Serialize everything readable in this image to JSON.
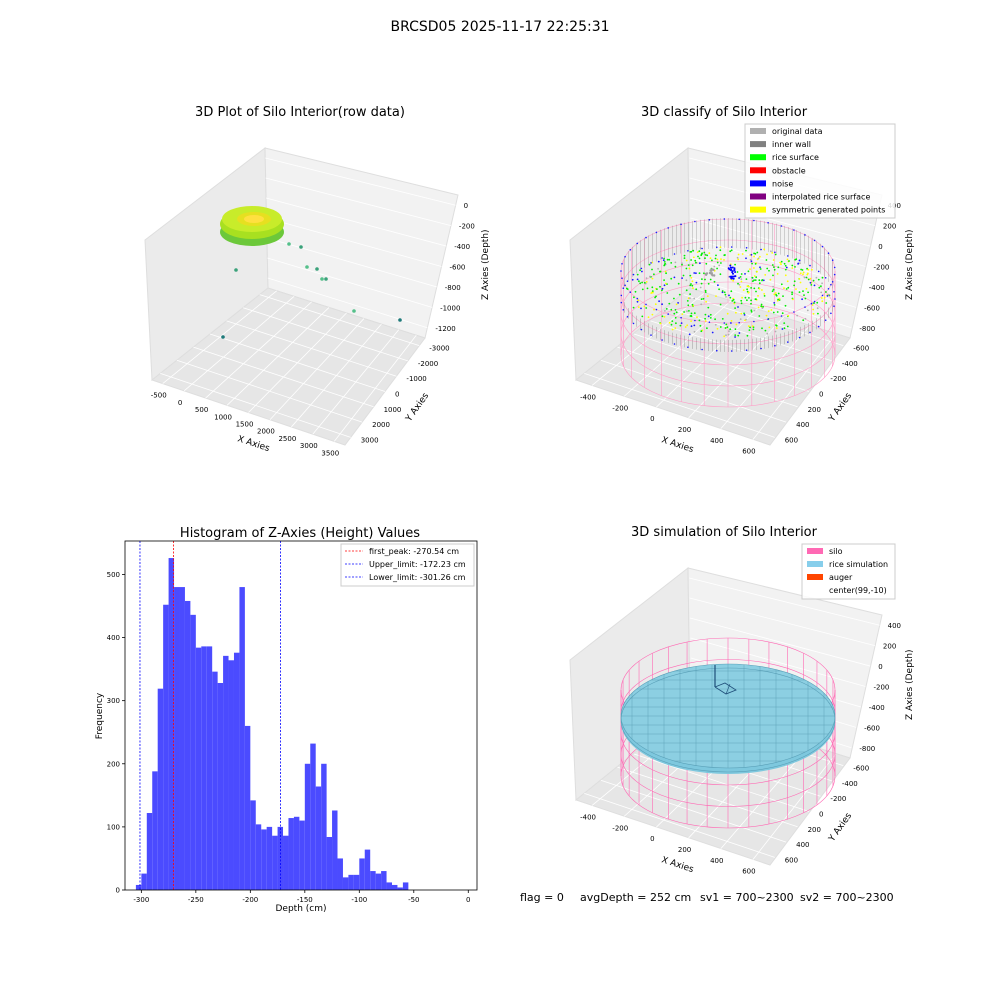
{
  "figure": {
    "suptitle": "BRCSD05 2025-11-17 22:25:31",
    "footer": {
      "flag": "flag = 0",
      "avg_depth": "avgDepth = 252 cm",
      "sv1": "sv1 = 700~2300",
      "sv2": "sv2 = 700~2300"
    }
  },
  "panel1": {
    "title": "3D Plot of Silo Interior(row data)",
    "xlabel": "X Axies",
    "ylabel": "Y Axies",
    "zlabel": "Z Axies (Depth)",
    "x_ticks": [
      "-500",
      "0",
      "500",
      "1000",
      "1500",
      "2000",
      "2500",
      "3000",
      "3500"
    ],
    "y_ticks": [
      "3000",
      "2000",
      "1000",
      "0",
      "-1000",
      "-2000",
      "-3000"
    ],
    "z_ticks": [
      "0",
      "-200",
      "-400",
      "-600",
      "-800",
      "-1000",
      "-1200"
    ],
    "colors": {
      "surface": "#a8e020",
      "surface_dark": "#6cc83a",
      "outlier": "#3aa27a"
    }
  },
  "panel2": {
    "title": "3D classify of Silo Interior",
    "xlabel": "X Axies",
    "ylabel": "Y Axies",
    "zlabel": "Z Axies (Depth)",
    "x_ticks": [
      "-400",
      "-200",
      "0",
      "200",
      "400",
      "600"
    ],
    "y_ticks": [
      "600",
      "400",
      "200",
      "0",
      "-200",
      "-400",
      "-600"
    ],
    "z_ticks": [
      "400",
      "200",
      "0",
      "-200",
      "-400",
      "-600",
      "-800"
    ],
    "legend": [
      {
        "label": "original data",
        "color": "#b0b0b0"
      },
      {
        "label": "inner wall",
        "color": "#808080"
      },
      {
        "label": "rice surface",
        "color": "#00ff00"
      },
      {
        "label": "obstacle",
        "color": "#ff0000"
      },
      {
        "label": "noise",
        "color": "#0000ff"
      },
      {
        "label": "interpolated rice surface",
        "color": "#800080"
      },
      {
        "label": "symmetric generated points",
        "color": "#ffff00"
      }
    ]
  },
  "panel3": {
    "chart_data": {
      "type": "bar",
      "title": "Histogram of Z-Axies (Height) Values",
      "xlabel": "Depth (cm)",
      "ylabel": "Frequency",
      "xlim": [
        -315,
        8
      ],
      "ylim": [
        0,
        553
      ],
      "x_ticks": [
        -300,
        -250,
        -200,
        -150,
        -100,
        -50,
        0
      ],
      "y_ticks": [
        0,
        100,
        200,
        300,
        400,
        500
      ],
      "bin_width": 5,
      "bin_start": -305,
      "values": [
        8,
        26,
        122,
        188,
        319,
        452,
        526,
        480,
        480,
        458,
        436,
        384,
        386,
        386,
        346,
        328,
        371,
        364,
        376,
        480,
        260,
        142,
        104,
        96,
        100,
        86,
        100,
        86,
        114,
        116,
        110,
        200,
        232,
        164,
        200,
        84,
        126,
        50,
        20,
        24,
        24,
        50,
        64,
        30,
        26,
        30,
        12,
        8,
        4,
        12
      ],
      "bar_color": "#4b4bff",
      "lines": [
        {
          "label": "first_peak: -270.54 cm",
          "x": -270.54,
          "color": "#ff0000"
        },
        {
          "label": "Upper_limit: -172.23 cm",
          "x": -172.23,
          "color": "#0000ff"
        },
        {
          "label": "Lower_limit: -301.26 cm",
          "x": -301.26,
          "color": "#0000ff"
        }
      ]
    }
  },
  "panel4": {
    "title": "3D simulation of Silo Interior",
    "xlabel": "X Axies",
    "ylabel": "Y Axies",
    "zlabel": "Z Axies (Depth)",
    "x_ticks": [
      "-400",
      "-200",
      "0",
      "200",
      "400",
      "600"
    ],
    "y_ticks": [
      "600",
      "400",
      "200",
      "0",
      "-200",
      "-400",
      "-600"
    ],
    "z_ticks": [
      "400",
      "200",
      "0",
      "-200",
      "-400",
      "-600",
      "-800"
    ],
    "legend": [
      {
        "label": "silo",
        "color": "#ff69b4"
      },
      {
        "label": "rice simulation",
        "color": "#87ceeb"
      },
      {
        "label": "auger",
        "color": "#ff4500"
      },
      {
        "label": "center(99,-10)",
        "color": ""
      }
    ]
  }
}
